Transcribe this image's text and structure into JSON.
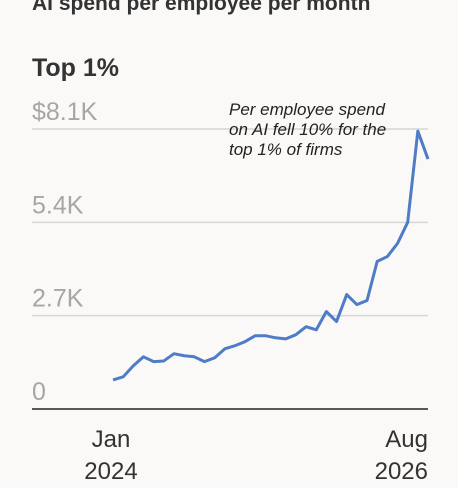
{
  "chart_data": {
    "type": "line",
    "title": "AI spend per employee per month",
    "subtitle": "Top 1%",
    "annotation": "Per employee spend on AI fell 10% for the top 1% of firms",
    "categories": [
      "Jan 2024",
      null,
      null,
      null,
      null,
      null,
      null,
      null,
      null,
      null,
      null,
      null,
      null,
      null,
      null,
      null,
      null,
      null,
      null,
      null,
      null,
      null,
      null,
      null,
      null,
      null,
      null,
      null,
      null,
      null,
      null,
      "Aug 2026"
    ],
    "series": [
      {
        "name": "Top 1%",
        "color": "#4f7cc6",
        "values": [
          840,
          930,
          1250,
          1510,
          1370,
          1390,
          1600,
          1540,
          1510,
          1370,
          1480,
          1740,
          1830,
          1950,
          2120,
          2120,
          2060,
          2030,
          2150,
          2380,
          2290,
          2820,
          2530,
          3310,
          3020,
          3140,
          4270,
          4410,
          4790,
          5400,
          8040,
          7230
        ]
      }
    ],
    "ylim": [
      0,
      8100
    ],
    "yticks": [
      0,
      {
        "value": 2700,
        "label": "2.7K"
      },
      {
        "value": 5400,
        "label": "5.4K"
      },
      {
        "value": 8100,
        "label": "$8.1K"
      }
    ],
    "grid": true
  }
}
